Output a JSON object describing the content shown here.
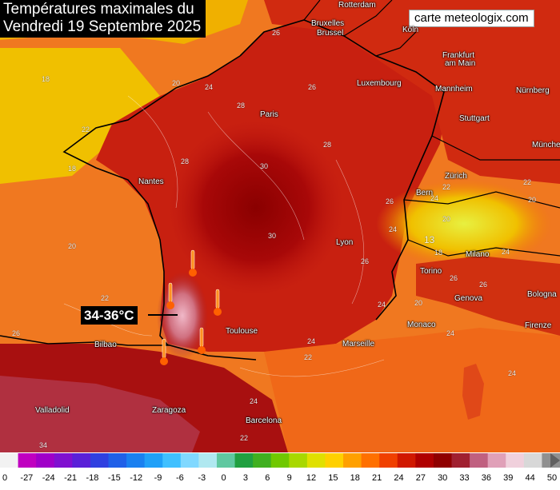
{
  "title": {
    "line1": "Températures maximales du",
    "line2": "Vendredi 19 Septembre 2025"
  },
  "credit": "carte meteologix.com",
  "callout": "34-36°C",
  "icons": {
    "marker": "thermometer-icon"
  },
  "cities": [
    {
      "name": "Rotterdam",
      "key": "rotterdam"
    },
    {
      "name": "Bruxelles",
      "key": "bruxelles"
    },
    {
      "name": "Brussel",
      "key": "brussel"
    },
    {
      "name": "Köln",
      "key": "koln"
    },
    {
      "name": "Frankfurt",
      "key": "frankfurt"
    },
    {
      "name": "am Main",
      "key": "am-main"
    },
    {
      "name": "Luxembourg",
      "key": "luxembourg"
    },
    {
      "name": "Mannheim",
      "key": "mannheim"
    },
    {
      "name": "Nürnberg",
      "key": "nurnberg"
    },
    {
      "name": "Paris",
      "key": "paris"
    },
    {
      "name": "Stuttgart",
      "key": "stuttgart"
    },
    {
      "name": "Münche",
      "key": "munich"
    },
    {
      "name": "Nantes",
      "key": "nantes"
    },
    {
      "name": "Zürich",
      "key": "zurich"
    },
    {
      "name": "Bern",
      "key": "bern"
    },
    {
      "name": "Lyon",
      "key": "lyon"
    },
    {
      "name": "Milano",
      "key": "milano"
    },
    {
      "name": "Torino",
      "key": "torino"
    },
    {
      "name": "Genova",
      "key": "genova"
    },
    {
      "name": "Bologna",
      "key": "bologna"
    },
    {
      "name": "Monaco",
      "key": "monaco"
    },
    {
      "name": "Firenze",
      "key": "firenze"
    },
    {
      "name": "Toulouse",
      "key": "toulouse"
    },
    {
      "name": "Marseille",
      "key": "marseille"
    },
    {
      "name": "Bilbao",
      "key": "bilbao"
    },
    {
      "name": "Valladolid",
      "key": "valladolid"
    },
    {
      "name": "Zaragoza",
      "key": "zaragoza"
    },
    {
      "name": "Barcelona",
      "key": "barcelona"
    }
  ],
  "isolines": [
    "18",
    "18",
    "20",
    "22",
    "20",
    "24",
    "28",
    "28",
    "30",
    "30",
    "26",
    "26",
    "28",
    "26",
    "24",
    "22",
    "24",
    "20",
    "13",
    "18",
    "20",
    "24",
    "26",
    "26",
    "24",
    "22",
    "24",
    "26",
    "22",
    "22",
    "24",
    "22",
    "24",
    "34",
    "24",
    "26",
    "20"
  ],
  "legend": {
    "ticks": [
      "0",
      "-27",
      "-24",
      "-21",
      "-18",
      "-15",
      "-12",
      "-9",
      "-6",
      "-3",
      "0",
      "3",
      "6",
      "9",
      "12",
      "15",
      "18",
      "21",
      "24",
      "27",
      "30",
      "33",
      "36",
      "39",
      "44",
      "50"
    ],
    "colors": [
      "#f2f2f2",
      "#c000c0",
      "#a000c8",
      "#8010d0",
      "#5a20d8",
      "#3040e0",
      "#2060e8",
      "#1a80f0",
      "#20a0f8",
      "#40c0ff",
      "#80d8ff",
      "#b0e8f0",
      "#60c8a0",
      "#20a040",
      "#40b020",
      "#70c800",
      "#a8d800",
      "#e0e000",
      "#ffd000",
      "#ffa000",
      "#ff7000",
      "#f04000",
      "#d01800",
      "#b00000",
      "#900000",
      "#a02030",
      "#c06080",
      "#e0a0b8",
      "#f0d0dc",
      "#d8d8d8",
      "#909090"
    ]
  }
}
